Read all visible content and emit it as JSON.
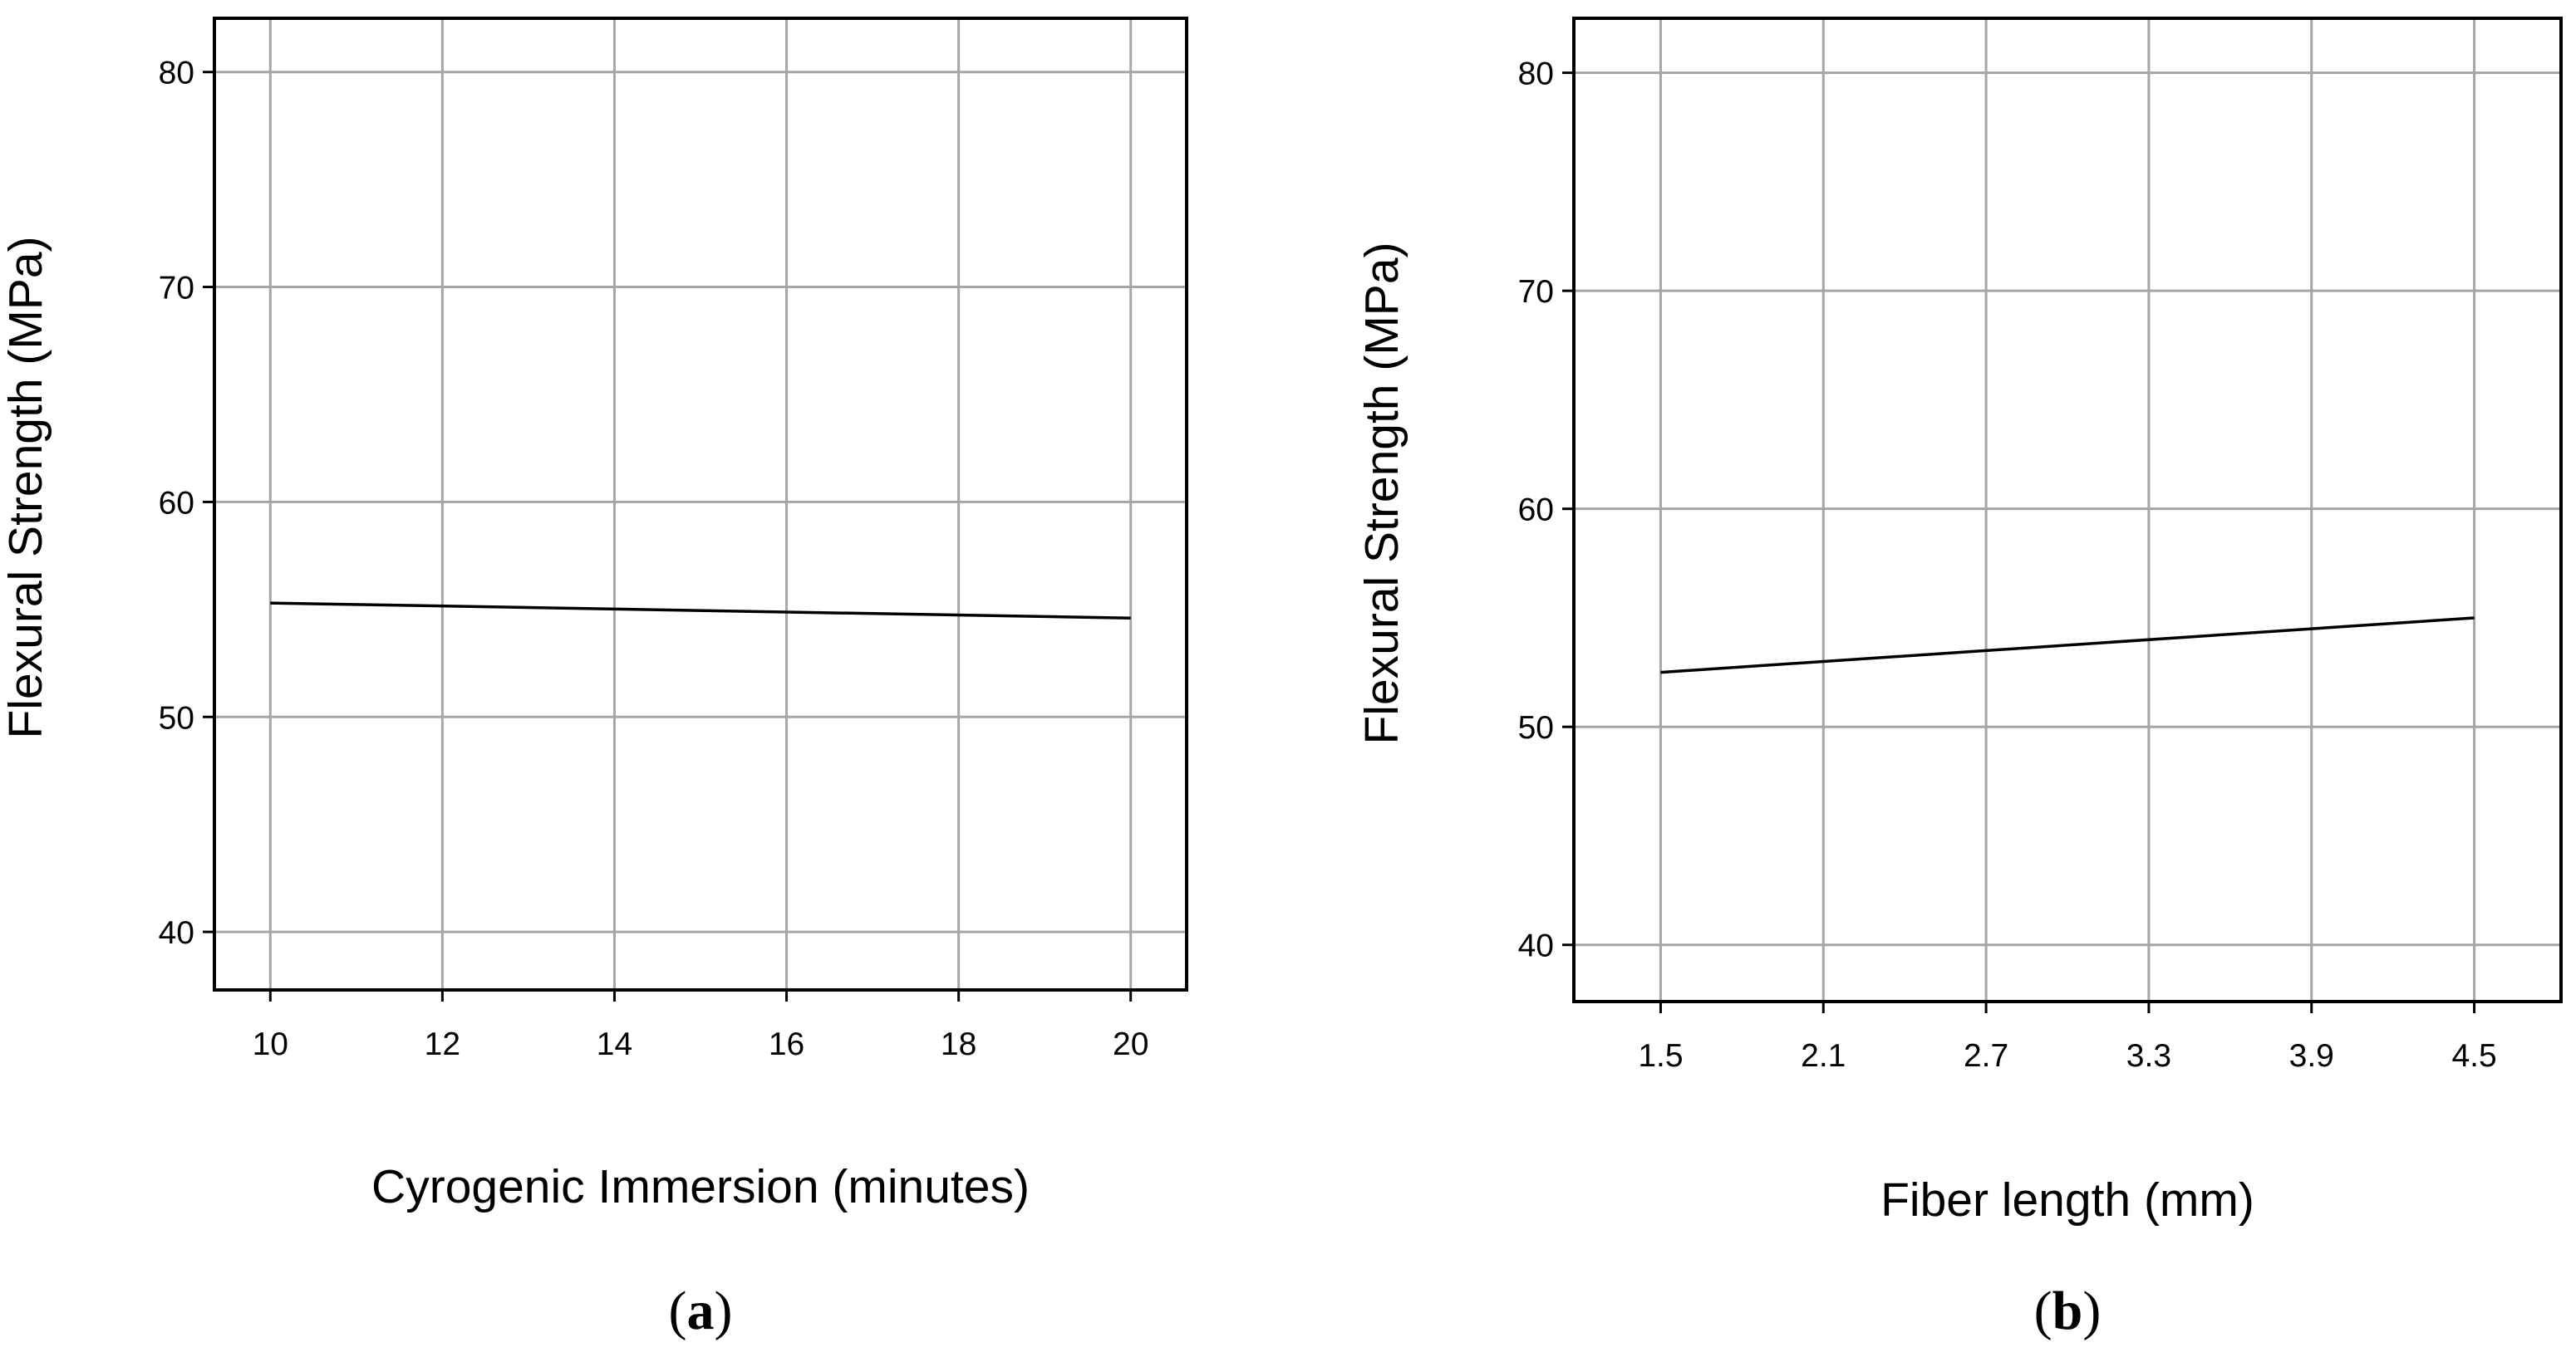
{
  "chart_data": [
    {
      "type": "line",
      "panel_label": "a",
      "xlabel": "Cyrogenic Immersion (minutes)",
      "ylabel": "Flexural Strength (MPa)",
      "xlim": [
        9.35,
        20.65
      ],
      "ylim": [
        37.3,
        82.5
      ],
      "x_ticks": [
        10,
        12,
        14,
        16,
        18,
        20
      ],
      "y_ticks": [
        40,
        50,
        60,
        70,
        80
      ],
      "grid": true,
      "series": [
        {
          "x": [
            10,
            20
          ],
          "y": [
            55.3,
            54.6
          ]
        }
      ]
    },
    {
      "type": "line",
      "panel_label": "b",
      "xlabel": "Fiber length (mm)",
      "ylabel": "Flexural Strength (MPa)",
      "x_ticks": [
        "1.5",
        "2.1",
        "2.7",
        "3.3",
        "3.9",
        "4.5"
      ],
      "xlim": [
        1.18,
        4.82
      ],
      "ylim": [
        37.4,
        82.5
      ],
      "y_ticks": [
        40,
        50,
        60,
        70,
        80
      ],
      "grid": true,
      "series": [
        {
          "x": [
            1.5,
            4.5
          ],
          "y": [
            52.5,
            55.0
          ]
        }
      ]
    }
  ]
}
